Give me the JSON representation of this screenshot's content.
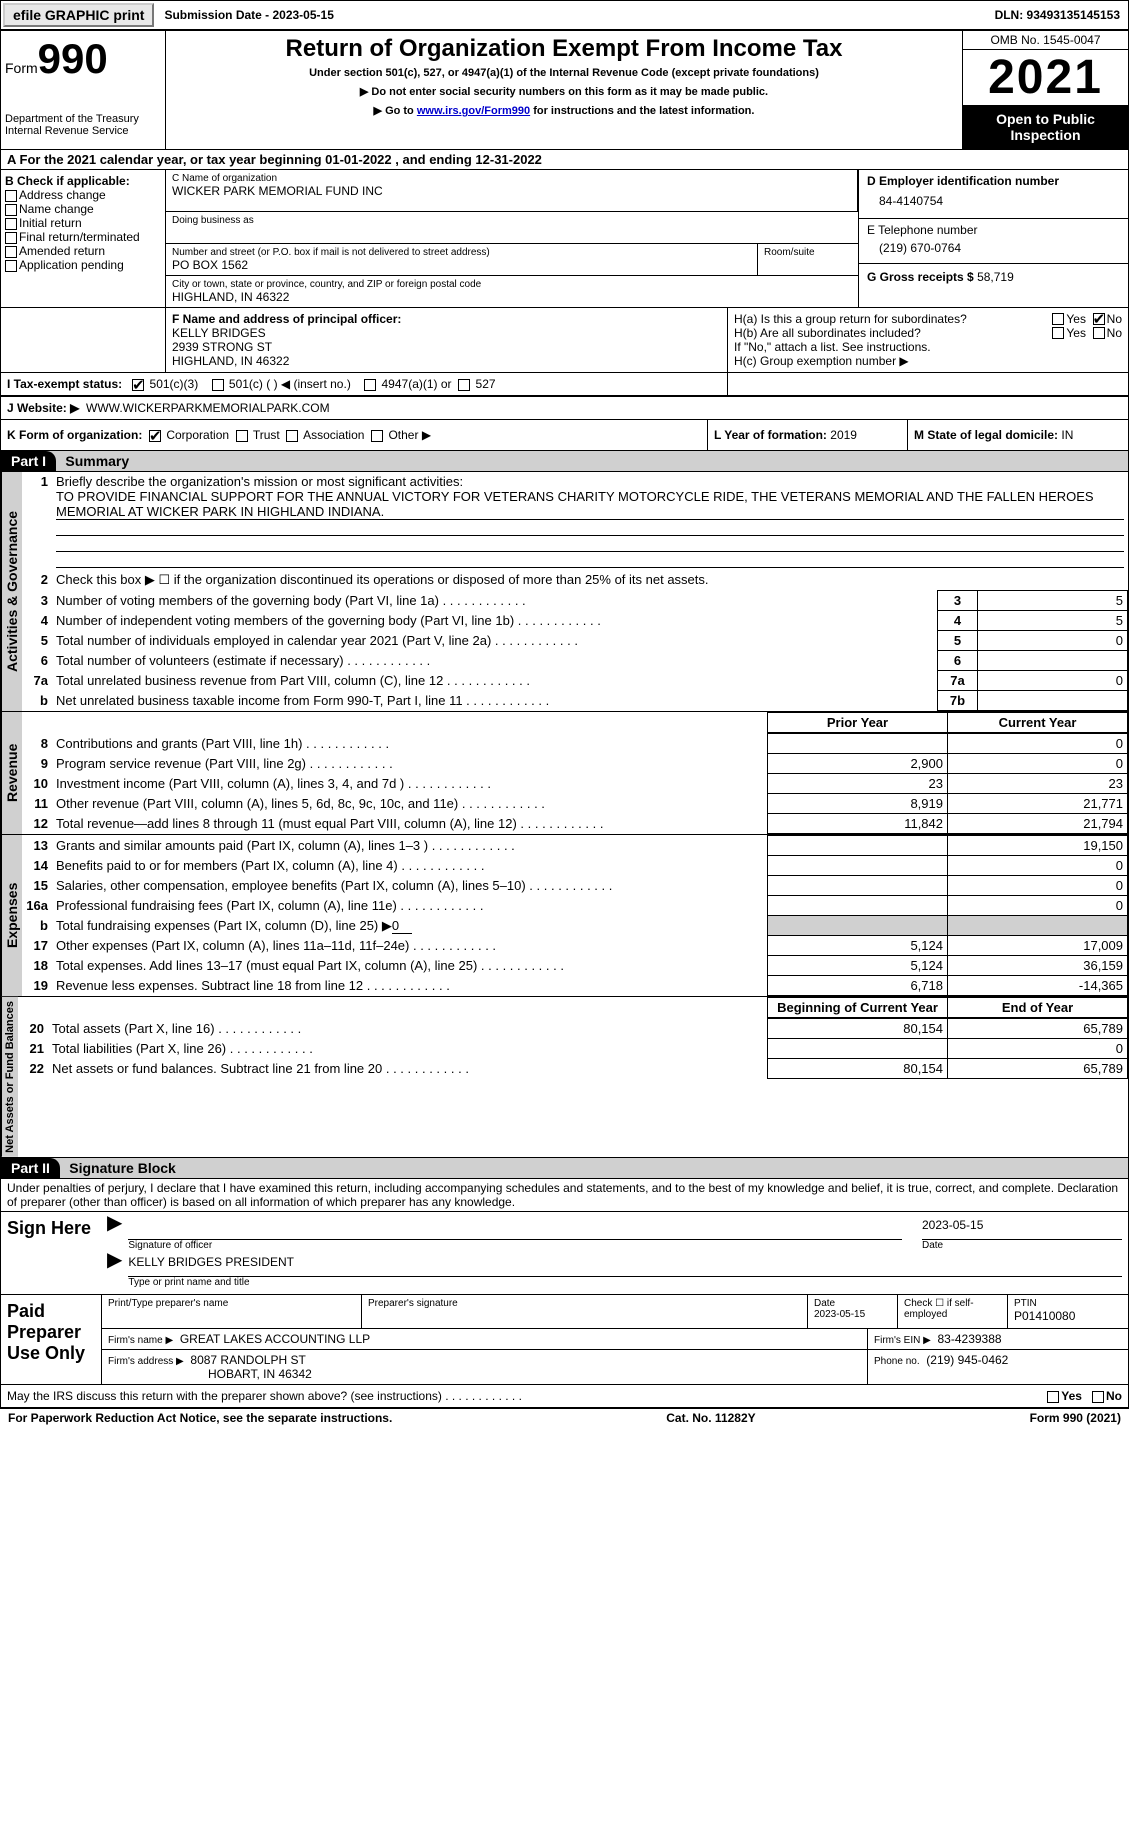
{
  "topbar": {
    "efile_btn": "efile GRAPHIC print",
    "sub_date_label": "Submission Date - 2023-05-15",
    "dln": "DLN: 93493135145153"
  },
  "header": {
    "form_label": "Form",
    "form_no": "990",
    "dept": "Department of the Treasury",
    "irs": "Internal Revenue Service",
    "title": "Return of Organization Exempt From Income Tax",
    "sub1": "Under section 501(c), 527, or 4947(a)(1) of the Internal Revenue Code (except private foundations)",
    "sub2": "▶ Do not enter social security numbers on this form as it may be made public.",
    "sub3_pre": "▶ Go to ",
    "sub3_link": "www.irs.gov/Form990",
    "sub3_post": " for instructions and the latest information.",
    "omb": "OMB No. 1545-0047",
    "year": "2021",
    "open_pub": "Open to Public Inspection"
  },
  "line_a": "A For the 2021 calendar year, or tax year beginning 01-01-2022   , and ending 12-31-2022",
  "box_b": {
    "label": "B Check if applicable:",
    "items": [
      "Address change",
      "Name change",
      "Initial return",
      "Final return/terminated",
      "Amended return",
      "Application pending"
    ]
  },
  "box_c": {
    "name_label": "C Name of organization",
    "name": "WICKER PARK MEMORIAL FUND INC",
    "dba_label": "Doing business as",
    "addr_label": "Number and street (or P.O. box if mail is not delivered to street address)",
    "room_label": "Room/suite",
    "addr": "PO BOX 1562",
    "city_label": "City or town, state or province, country, and ZIP or foreign postal code",
    "city": "HIGHLAND, IN  46322"
  },
  "box_d": {
    "label": "D Employer identification number",
    "val": "84-4140754"
  },
  "box_e": {
    "label": "E Telephone number",
    "val": "(219) 670-0764"
  },
  "box_g": {
    "label": "G Gross receipts $",
    "val": "58,719"
  },
  "box_f": {
    "label": "F  Name and address of principal officer:",
    "lines": [
      "KELLY BRIDGES",
      "2939 STRONG ST",
      "HIGHLAND, IN  46322"
    ]
  },
  "box_h": {
    "a": "H(a)  Is this a group return for subordinates?",
    "b": "H(b)  Are all subordinates included?",
    "note": "If \"No,\" attach a list. See instructions.",
    "c": "H(c)  Group exemption number ▶"
  },
  "yes": "Yes",
  "no": "No",
  "box_i": {
    "label": "I   Tax-exempt status:",
    "o1": "501(c)(3)",
    "o2": "501(c) (  ) ◀ (insert no.)",
    "o3": "4947(a)(1) or",
    "o4": "527"
  },
  "box_j": {
    "label": "J   Website: ▶",
    "val": "WWW.WICKERPARKMEMORIALPARK.COM"
  },
  "box_k": {
    "label": "K Form of organization:",
    "o1": "Corporation",
    "o2": "Trust",
    "o3": "Association",
    "o4": "Other ▶"
  },
  "box_l": {
    "label": "L Year of formation:",
    "val": "2019"
  },
  "box_m": {
    "label": "M State of legal domicile:",
    "val": "IN"
  },
  "part1": {
    "num": "Part I",
    "title": "Summary"
  },
  "sidebars": {
    "s1": "Activities & Governance",
    "s2": "Revenue",
    "s3": "Expenses",
    "s4": "Net Assets or Fund Balances"
  },
  "summary": {
    "l1_label": "Briefly describe the organization's mission or most significant activities:",
    "l1_text": "TO PROVIDE FINANCIAL SUPPORT FOR THE ANNUAL VICTORY FOR VETERANS CHARITY MOTORCYCLE RIDE, THE VETERANS MEMORIAL AND THE FALLEN HEROES MEMORIAL AT WICKER PARK IN HIGHLAND INDIANA.",
    "l2": "Check this box ▶ ☐  if the organization discontinued its operations or disposed of more than 25% of its net assets.",
    "rows_a": [
      {
        "n": "3",
        "t": "Number of voting members of the governing body (Part VI, line 1a)",
        "box": "3",
        "v": "5"
      },
      {
        "n": "4",
        "t": "Number of independent voting members of the governing body (Part VI, line 1b)",
        "box": "4",
        "v": "5"
      },
      {
        "n": "5",
        "t": "Total number of individuals employed in calendar year 2021 (Part V, line 2a)",
        "box": "5",
        "v": "0"
      },
      {
        "n": "6",
        "t": "Total number of volunteers (estimate if necessary)",
        "box": "6",
        "v": ""
      },
      {
        "n": "7a",
        "t": "Total unrelated business revenue from Part VIII, column (C), line 12",
        "box": "7a",
        "v": "0"
      },
      {
        "n": "b",
        "t": "Net unrelated business taxable income from Form 990-T, Part I, line 11",
        "box": "7b",
        "v": ""
      }
    ],
    "col_prior": "Prior Year",
    "col_curr": "Current Year",
    "rows_rev": [
      {
        "n": "8",
        "t": "Contributions and grants (Part VIII, line 1h)",
        "p": "",
        "c": "0"
      },
      {
        "n": "9",
        "t": "Program service revenue (Part VIII, line 2g)",
        "p": "2,900",
        "c": "0"
      },
      {
        "n": "10",
        "t": "Investment income (Part VIII, column (A), lines 3, 4, and 7d )",
        "p": "23",
        "c": "23"
      },
      {
        "n": "11",
        "t": "Other revenue (Part VIII, column (A), lines 5, 6d, 8c, 9c, 10c, and 11e)",
        "p": "8,919",
        "c": "21,771"
      },
      {
        "n": "12",
        "t": "Total revenue—add lines 8 through 11 (must equal Part VIII, column (A), line 12)",
        "p": "11,842",
        "c": "21,794"
      }
    ],
    "rows_exp": [
      {
        "n": "13",
        "t": "Grants and similar amounts paid (Part IX, column (A), lines 1–3 )",
        "p": "",
        "c": "19,150"
      },
      {
        "n": "14",
        "t": "Benefits paid to or for members (Part IX, column (A), line 4)",
        "p": "",
        "c": "0"
      },
      {
        "n": "15",
        "t": "Salaries, other compensation, employee benefits (Part IX, column (A), lines 5–10)",
        "p": "",
        "c": "0"
      },
      {
        "n": "16a",
        "t": "Professional fundraising fees (Part IX, column (A), line 11e)",
        "p": "",
        "c": "0"
      },
      {
        "n": "b",
        "t": "Total fundraising expenses (Part IX, column (D), line 25) ▶",
        "p": "grey",
        "c": "grey",
        "inline": "0"
      },
      {
        "n": "17",
        "t": "Other expenses (Part IX, column (A), lines 11a–11d, 11f–24e)",
        "p": "5,124",
        "c": "17,009"
      },
      {
        "n": "18",
        "t": "Total expenses. Add lines 13–17 (must equal Part IX, column (A), line 25)",
        "p": "5,124",
        "c": "36,159"
      },
      {
        "n": "19",
        "t": "Revenue less expenses. Subtract line 18 from line 12",
        "p": "6,718",
        "c": "-14,365"
      }
    ],
    "col_beg": "Beginning of Current Year",
    "col_end": "End of Year",
    "rows_net": [
      {
        "n": "20",
        "t": "Total assets (Part X, line 16)",
        "p": "80,154",
        "c": "65,789"
      },
      {
        "n": "21",
        "t": "Total liabilities (Part X, line 26)",
        "p": "",
        "c": "0"
      },
      {
        "n": "22",
        "t": "Net assets or fund balances. Subtract line 21 from line 20",
        "p": "80,154",
        "c": "65,789"
      }
    ]
  },
  "part2": {
    "num": "Part II",
    "title": "Signature Block"
  },
  "sig": {
    "decl": "Under penalties of perjury, I declare that I have examined this return, including accompanying schedules and statements, and to the best of my knowledge and belief, it is true, correct, and complete. Declaration of preparer (other than officer) is based on all information of which preparer has any knowledge.",
    "sign_here": "Sign Here",
    "sig_officer": "Signature of officer",
    "sig_date": "Date",
    "sig_date_val": "2023-05-15",
    "name_title": "KELLY BRIDGES  PRESIDENT",
    "name_title_label": "Type or print name and title",
    "paid_prep": "Paid Preparer Use Only",
    "pp_name_label": "Print/Type preparer's name",
    "pp_sig_label": "Preparer's signature",
    "pp_date_label": "Date",
    "pp_date": "2023-05-15",
    "pp_check_label": "Check ☐ if self-employed",
    "ptin_label": "PTIN",
    "ptin": "P01410080",
    "firm_name_label": "Firm's name    ▶",
    "firm_name": "GREAT LAKES ACCOUNTING LLP",
    "firm_ein_label": "Firm's EIN ▶",
    "firm_ein": "83-4239388",
    "firm_addr_label": "Firm's address ▶",
    "firm_addr1": "8087 RANDOLPH ST",
    "firm_addr2": "HOBART, IN  46342",
    "phone_label": "Phone no.",
    "phone": "(219) 945-0462",
    "discuss": "May the IRS discuss this return with the preparer shown above? (see instructions)"
  },
  "footer": {
    "left": "For Paperwork Reduction Act Notice, see the separate instructions.",
    "mid": "Cat. No. 11282Y",
    "right": "Form 990 (2021)"
  },
  "colors": {
    "hdr_bg": "#d0d0d0",
    "link": "#0000cc"
  }
}
